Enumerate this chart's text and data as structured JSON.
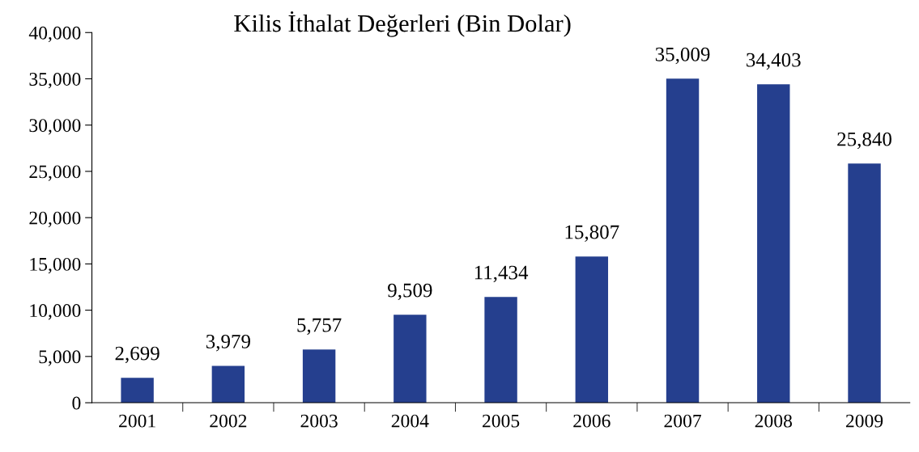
{
  "chart_data": {
    "type": "bar",
    "title": "Kilis İthalat Değerleri (Bin Dolar)",
    "categories": [
      "2001",
      "2002",
      "2003",
      "2004",
      "2005",
      "2006",
      "2007",
      "2008",
      "2009"
    ],
    "values": [
      2699,
      3979,
      5757,
      9509,
      11434,
      15807,
      35009,
      34403,
      25840
    ],
    "color": "#253f8e",
    "ylim": [
      0,
      40000
    ],
    "yticks": [
      {
        "value": 0,
        "label": "0"
      },
      {
        "value": 5000,
        "label": "5,000"
      },
      {
        "value": 10000,
        "label": "10,000"
      },
      {
        "value": 15000,
        "label": "15,000"
      },
      {
        "value": 20000,
        "label": "20,000"
      },
      {
        "value": 25000,
        "label": "25,000"
      },
      {
        "value": 30000,
        "label": "30,000"
      },
      {
        "value": 35000,
        "label": "35,000"
      },
      {
        "value": 40000,
        "label": "40,000"
      }
    ],
    "value_labels": [
      "2,699",
      "3,979",
      "5,757",
      "9,509",
      "11,434",
      "15,807",
      "35,009",
      "34,403",
      "25,840"
    ],
    "grid": false
  }
}
